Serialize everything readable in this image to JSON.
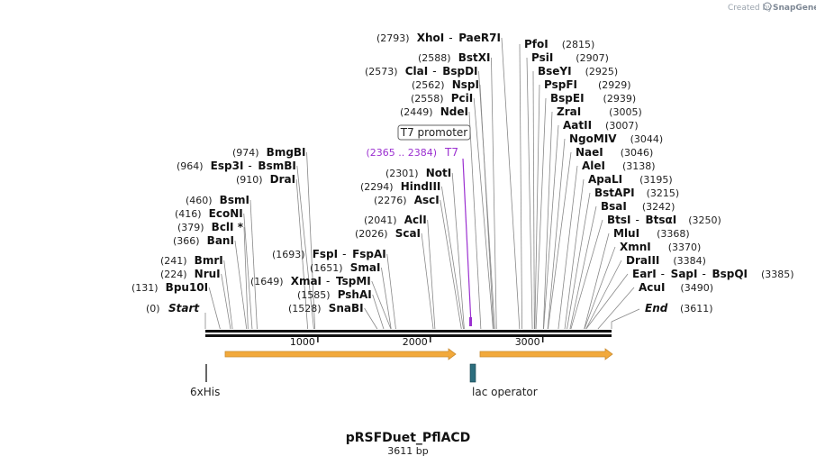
{
  "credit": {
    "prefix": "Created by",
    "brand": "SnapGene"
  },
  "plasmid": {
    "name": "pRSFDuet_PflACD",
    "size_label": "3611 bp",
    "length_bp": 3611
  },
  "ruler": {
    "ticks": [
      {
        "bp": 1000,
        "label": "1000"
      },
      {
        "bp": 2000,
        "label": "2000"
      },
      {
        "bp": 3000,
        "label": "3000"
      }
    ]
  },
  "endpoints": {
    "start": {
      "pos": "(0)",
      "label": "Start"
    },
    "end": {
      "pos": "(3611)",
      "label": "End"
    }
  },
  "left_sites": [
    {
      "pos": "(974)",
      "bp": 974,
      "names": [
        "BmgBI"
      ]
    },
    {
      "pos": "(964)",
      "bp": 964,
      "names": [
        "Esp3I",
        "BsmBI"
      ]
    },
    {
      "pos": "(910)",
      "bp": 910,
      "names": [
        "DraI"
      ]
    },
    {
      "pos": "(460)",
      "bp": 460,
      "names": [
        "BsmI"
      ]
    },
    {
      "pos": "(416)",
      "bp": 416,
      "names": [
        "EcoNI"
      ]
    },
    {
      "pos": "(379)",
      "bp": 379,
      "names": [
        "BclI *"
      ]
    },
    {
      "pos": "(366)",
      "bp": 366,
      "names": [
        "BanI"
      ]
    },
    {
      "pos": "(241)",
      "bp": 241,
      "names": [
        "BmrI"
      ]
    },
    {
      "pos": "(224)",
      "bp": 224,
      "names": [
        "NruI"
      ]
    },
    {
      "pos": "(131)",
      "bp": 131,
      "names": [
        "Bpu10I"
      ]
    }
  ],
  "mid_left_sites": [
    {
      "pos": "(1693)",
      "bp": 1693,
      "names": [
        "FspI",
        "FspAI"
      ]
    },
    {
      "pos": "(1651)",
      "bp": 1651,
      "names": [
        "SmaI"
      ]
    },
    {
      "pos": "(1649)",
      "bp": 1649,
      "names": [
        "XmaI",
        "TspMI"
      ]
    },
    {
      "pos": "(1585)",
      "bp": 1585,
      "names": [
        "PshAI"
      ]
    },
    {
      "pos": "(1528)",
      "bp": 1528,
      "names": [
        "SnaBI"
      ]
    }
  ],
  "center_sites": [
    {
      "pos": "(2793)",
      "bp": 2793,
      "names": [
        "XhoI",
        "PaeR7I"
      ]
    },
    {
      "pos": "(2588)",
      "bp": 2588,
      "names": [
        "BstXI"
      ]
    },
    {
      "pos": "(2573)",
      "bp": 2573,
      "names": [
        "ClaI",
        "BspDI"
      ]
    },
    {
      "pos": "(2562)",
      "bp": 2562,
      "names": [
        "NspI"
      ]
    },
    {
      "pos": "(2558)",
      "bp": 2558,
      "names": [
        "PciI"
      ]
    },
    {
      "pos": "(2449)",
      "bp": 2449,
      "names": [
        "NdeI"
      ]
    },
    {
      "pos": "(2301)",
      "bp": 2301,
      "names": [
        "NotI"
      ]
    },
    {
      "pos": "(2294)",
      "bp": 2294,
      "names": [
        "HindIII"
      ]
    },
    {
      "pos": "(2276)",
      "bp": 2276,
      "names": [
        "AscI"
      ]
    },
    {
      "pos": "(2041)",
      "bp": 2041,
      "names": [
        "AclI"
      ]
    },
    {
      "pos": "(2026)",
      "bp": 2026,
      "names": [
        "ScaI"
      ]
    }
  ],
  "right_sites": [
    {
      "pos": "(2815)",
      "bp": 2815,
      "names": [
        "PfoI"
      ]
    },
    {
      "pos": "(2907)",
      "bp": 2907,
      "names": [
        "PsiI"
      ]
    },
    {
      "pos": "(2925)",
      "bp": 2925,
      "names": [
        "BseYI"
      ]
    },
    {
      "pos": "(2929)",
      "bp": 2929,
      "names": [
        "PspFI"
      ]
    },
    {
      "pos": "(2939)",
      "bp": 2939,
      "names": [
        "BspEI"
      ]
    },
    {
      "pos": "(3005)",
      "bp": 3005,
      "names": [
        "ZraI"
      ]
    },
    {
      "pos": "(3007)",
      "bp": 3007,
      "names": [
        "AatII"
      ]
    },
    {
      "pos": "(3044)",
      "bp": 3044,
      "names": [
        "NgoMIV"
      ]
    },
    {
      "pos": "(3046)",
      "bp": 3046,
      "names": [
        "NaeI"
      ]
    },
    {
      "pos": "(3138)",
      "bp": 3138,
      "names": [
        "AleI"
      ]
    },
    {
      "pos": "(3195)",
      "bp": 3195,
      "names": [
        "ApaLI"
      ]
    },
    {
      "pos": "(3215)",
      "bp": 3215,
      "names": [
        "BstAPI"
      ]
    },
    {
      "pos": "(3242)",
      "bp": 3242,
      "names": [
        "BsaI"
      ]
    },
    {
      "pos": "(3250)",
      "bp": 3250,
      "names": [
        "BtsI",
        "BtsαI"
      ]
    },
    {
      "pos": "(3368)",
      "bp": 3368,
      "names": [
        "MluI"
      ]
    },
    {
      "pos": "(3370)",
      "bp": 3370,
      "names": [
        "XmnI"
      ]
    },
    {
      "pos": "(3384)",
      "bp": 3384,
      "names": [
        "DraIII"
      ]
    },
    {
      "pos": "(3385)",
      "bp": 3385,
      "names": [
        "EarI",
        "SapI",
        "BspQI"
      ]
    },
    {
      "pos": "(3490)",
      "bp": 3490,
      "names": [
        "AcuI"
      ]
    }
  ],
  "t7": {
    "range": "(2365 .. 2384)",
    "label": "T7",
    "promoter_box": "T7 promoter"
  },
  "features": [
    {
      "label": "6xHis",
      "color": "#7a7a7a"
    },
    {
      "label": "lac operator",
      "color": "#2d6e7e"
    }
  ],
  "colors": {
    "arrow": "#f2a93b",
    "arrow_edge": "#c98a2e",
    "t7": "#9b30d0",
    "backbone": "#111111"
  }
}
